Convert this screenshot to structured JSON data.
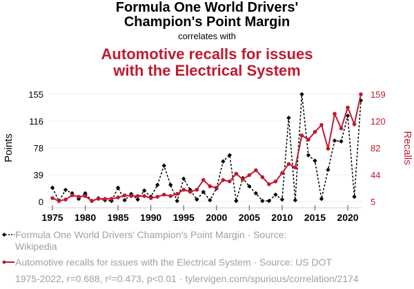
{
  "header": {
    "title": "Formula One World Drivers' Champion's Point Margin",
    "title_line1": "Formula One World Drivers'",
    "title_line2": "Champion's Point Margin",
    "subtitle": "correlates with",
    "title2_line1": "Automotive recalls for issues",
    "title2_line2": "with the Electrical System"
  },
  "colors": {
    "series1": "#000000",
    "series2": "#be1a32",
    "grid": "#eeeeee",
    "legend_text": "#a0a0a0"
  },
  "legend": {
    "series1_line1": "Formula One World Drivers' Champion's Point Margin · Source:",
    "series1_line2": "Wikipedia",
    "series2": "Automotive recalls for issues with the Electrical System · Source: US DOT",
    "footer": "1975-2022, r=0.688, r²=0.473, p<0.01 · tylervigen.com/spurious/correlation/2174"
  },
  "chart_data": {
    "type": "line",
    "title": "Formula One World Drivers' Champion's Point Margin correlates with Automotive recalls for issues with the Electrical System",
    "xlabel": "",
    "ylabel_left": "Points",
    "ylabel_right": "Recalls",
    "x": [
      1975,
      1976,
      1977,
      1978,
      1979,
      1980,
      1981,
      1982,
      1983,
      1984,
      1985,
      1986,
      1987,
      1988,
      1989,
      1990,
      1991,
      1992,
      1993,
      1994,
      1995,
      1996,
      1997,
      1998,
      1999,
      2000,
      2001,
      2002,
      2003,
      2004,
      2005,
      2006,
      2007,
      2008,
      2009,
      2010,
      2011,
      2012,
      2013,
      2014,
      2015,
      2016,
      2017,
      2018,
      2019,
      2020,
      2021,
      2022
    ],
    "x_ticks": [
      "1975",
      "1980",
      "1985",
      "1990",
      "1995",
      "2000",
      "2005",
      "2010",
      "2015",
      "2020"
    ],
    "xlim": [
      1974.5,
      2022.8
    ],
    "y_left_ticks": [
      "0",
      "39",
      "78",
      "116",
      "155"
    ],
    "y_left_lim": [
      0,
      155
    ],
    "y_right_ticks": [
      "5",
      "44",
      "82",
      "120",
      "159"
    ],
    "y_right_lim": [
      5,
      159
    ],
    "grid": true,
    "legend_position": "bottom",
    "series": [
      {
        "name": "Formula One World Drivers' Champion's Point Margin",
        "axis": "left",
        "style": "dashed",
        "marker": "diamond",
        "values": [
          20,
          1,
          17,
          12,
          4,
          12,
          1,
          5,
          2,
          1,
          20,
          2,
          11,
          3,
          16,
          7,
          24,
          52,
          24,
          1,
          33,
          17,
          3,
          14,
          2,
          19,
          58,
          67,
          1,
          34,
          22,
          12,
          1,
          1,
          10,
          3,
          121,
          2,
          155,
          67,
          59,
          4,
          46,
          88,
          87,
          124,
          7,
          146
        ]
      },
      {
        "name": "Automotive recalls for issues with the Electrical System",
        "axis": "right",
        "style": "solid",
        "marker": "circle",
        "values": [
          10,
          6,
          8,
          14,
          12,
          13,
          6,
          9,
          9,
          9,
          11,
          14,
          13,
          13,
          13,
          10,
          12,
          15,
          13,
          16,
          22,
          19,
          22,
          36,
          27,
          25,
          36,
          34,
          45,
          37,
          43,
          50,
          40,
          30,
          34,
          46,
          59,
          54,
          100,
          94,
          105,
          115,
          81,
          131,
          110,
          140,
          116,
          159
        ]
      }
    ]
  }
}
